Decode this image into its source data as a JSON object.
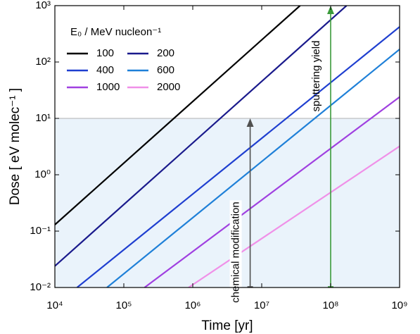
{
  "chart_data": {
    "type": "line",
    "xlabel": "Time [yr]",
    "ylabel": "Dose [ eV molec⁻¹ ]",
    "xscale": "log",
    "yscale": "log",
    "xlim": [
      10000,
      1000000000
    ],
    "ylim": [
      0.01,
      1000
    ],
    "xticks": [
      {
        "value": 10000,
        "label": "10⁴"
      },
      {
        "value": 100000,
        "label": "10⁵"
      },
      {
        "value": 1000000,
        "label": "10⁶"
      },
      {
        "value": 10000000,
        "label": "10⁷"
      },
      {
        "value": 100000000,
        "label": "10⁸"
      },
      {
        "value": 1000000000,
        "label": "10⁹"
      }
    ],
    "yticks": [
      {
        "value": 0.01,
        "label": "10⁻²"
      },
      {
        "value": 0.1,
        "label": "10⁻¹"
      },
      {
        "value": 1,
        "label": "10⁰"
      },
      {
        "value": 10,
        "label": "10¹"
      },
      {
        "value": 100,
        "label": "10²"
      },
      {
        "value": 1000,
        "label": "10³"
      }
    ],
    "legend_title": "E₀ / MeV nucleon⁻¹",
    "legend_loc": "upper left",
    "threshold": {
      "value": 10,
      "color": "#eaf3fb"
    },
    "series": [
      {
        "name": "100",
        "color": "#000000",
        "x": [
          10000,
          36000000
        ],
        "values": [
          0.13,
          1000
        ]
      },
      {
        "name": "200",
        "color": "#1a1a8c",
        "x": [
          10000,
          170000000
        ],
        "values": [
          0.024,
          1000
        ]
      },
      {
        "name": "400",
        "color": "#1f3fd0",
        "x": [
          21000,
          1000000000
        ],
        "values": [
          0.01,
          420
        ]
      },
      {
        "name": "600",
        "color": "#1f80d8",
        "x": [
          57000,
          1000000000
        ],
        "values": [
          0.01,
          168
        ]
      },
      {
        "name": "1000",
        "color": "#a040e0",
        "x": [
          200000,
          1000000000
        ],
        "values": [
          0.01,
          24
        ]
      },
      {
        "name": "2000",
        "color": "#f090e8",
        "x": [
          870000,
          1000000000
        ],
        "values": [
          0.01,
          3.2
        ]
      }
    ],
    "annotations": [
      {
        "text": "chemical modification",
        "color": "#505050",
        "x": 6800000,
        "y": [
          0.01,
          10
        ]
      },
      {
        "text": "sputtering yield",
        "color": "#3a9a3a",
        "x": 100000000,
        "y": [
          0.01,
          1000
        ]
      }
    ]
  }
}
